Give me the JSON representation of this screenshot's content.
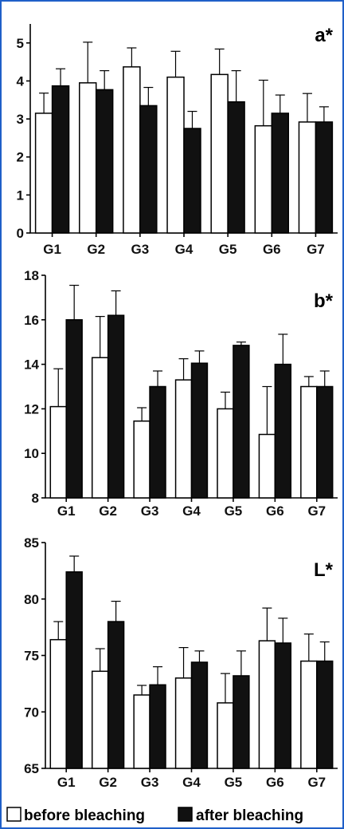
{
  "chart_data": [
    {
      "type": "bar",
      "panel_label": "a*",
      "categories": [
        "G1",
        "G2",
        "G3",
        "G4",
        "G5",
        "G6",
        "G7"
      ],
      "ylim": [
        0,
        5.5
      ],
      "yticks": [
        0,
        1,
        2,
        3,
        4,
        5
      ],
      "series": [
        {
          "name": "before bleaching",
          "values": [
            3.15,
            3.95,
            4.37,
            4.1,
            4.17,
            2.82,
            2.92
          ],
          "errors": [
            0.53,
            1.07,
            0.5,
            0.68,
            0.67,
            1.2,
            0.75
          ]
        },
        {
          "name": "after bleaching",
          "values": [
            3.87,
            3.77,
            3.35,
            2.75,
            3.45,
            3.15,
            2.92
          ],
          "errors": [
            0.45,
            0.5,
            0.48,
            0.45,
            0.82,
            0.48,
            0.4
          ]
        }
      ]
    },
    {
      "type": "bar",
      "panel_label": "b*",
      "categories": [
        "G1",
        "G2",
        "G3",
        "G4",
        "G5",
        "G6",
        "G7"
      ],
      "ylim": [
        8,
        18
      ],
      "yticks": [
        8,
        10,
        12,
        14,
        16,
        18
      ],
      "series": [
        {
          "name": "before bleaching",
          "values": [
            12.1,
            14.3,
            11.45,
            13.3,
            12.0,
            10.85,
            13.0
          ],
          "errors": [
            1.7,
            1.85,
            0.6,
            0.95,
            0.75,
            2.15,
            0.45
          ]
        },
        {
          "name": "after bleaching",
          "values": [
            16.0,
            16.2,
            13.0,
            14.05,
            14.85,
            14.0,
            13.0
          ],
          "errors": [
            1.55,
            1.1,
            0.7,
            0.55,
            0.15,
            1.35,
            0.7
          ]
        }
      ]
    },
    {
      "type": "bar",
      "panel_label": "L*",
      "categories": [
        "G1",
        "G2",
        "G3",
        "G4",
        "G5",
        "G6",
        "G7"
      ],
      "ylim": [
        65,
        85
      ],
      "yticks": [
        65,
        70,
        75,
        80,
        85
      ],
      "series": [
        {
          "name": "before bleaching",
          "values": [
            76.4,
            73.6,
            71.5,
            73.0,
            70.8,
            76.3,
            74.5
          ],
          "errors": [
            1.6,
            2.0,
            0.85,
            2.7,
            2.6,
            2.9,
            2.4
          ]
        },
        {
          "name": "after bleaching",
          "values": [
            82.4,
            78.0,
            72.4,
            74.4,
            73.2,
            76.1,
            74.5
          ],
          "errors": [
            1.4,
            1.8,
            1.6,
            1.0,
            2.2,
            2.2,
            1.7
          ]
        }
      ]
    }
  ],
  "legend": [
    {
      "label": "before bleaching",
      "color": "#ffffff"
    },
    {
      "label": "after bleaching",
      "color": "#111111"
    }
  ],
  "colors": {
    "before": "#ffffff",
    "after": "#111111",
    "frame": "#1f5fc8"
  }
}
